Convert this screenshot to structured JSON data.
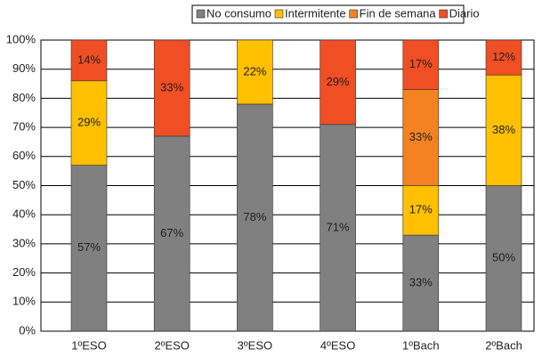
{
  "chart_data": {
    "type": "stacked_bar",
    "categories": [
      "1ºESO",
      "2ºESO",
      "3ºESO",
      "4ºESO",
      "1ºBach",
      "2ºBach"
    ],
    "series": [
      {
        "name": "No consumo",
        "color": "#808080",
        "values": [
          57,
          67,
          78,
          71,
          33,
          50
        ],
        "value_labels": [
          "57%",
          "67%",
          "78%",
          "71%",
          "33%",
          "50%"
        ]
      },
      {
        "name": "Intermitente",
        "color": "#ffc000",
        "values": [
          29,
          null,
          22,
          null,
          17,
          38
        ],
        "value_labels": [
          "29%",
          null,
          "22%",
          null,
          "17%",
          "38%"
        ]
      },
      {
        "name": "Fin de semana",
        "color": "#f58220",
        "values": [
          null,
          null,
          null,
          null,
          33,
          null
        ],
        "value_labels": [
          null,
          null,
          null,
          null,
          "33%",
          null
        ]
      },
      {
        "name": "Diario",
        "color": "#f04e23",
        "values": [
          14,
          33,
          null,
          29,
          17,
          12
        ],
        "value_labels": [
          "14%",
          "33%",
          null,
          "29%",
          "17%",
          "12%"
        ]
      }
    ],
    "ylim": [
      0,
      100
    ],
    "yticks": [
      {
        "value": 0,
        "label": "0%"
      },
      {
        "value": 10,
        "label": "10%"
      },
      {
        "value": 20,
        "label": "20%"
      },
      {
        "value": 30,
        "label": "30%"
      },
      {
        "value": 40,
        "label": "40%"
      },
      {
        "value": 50,
        "label": "50%"
      },
      {
        "value": 60,
        "label": "60%"
      },
      {
        "value": 70,
        "label": "70%"
      },
      {
        "value": 80,
        "label": "80%"
      },
      {
        "value": 90,
        "label": "90%"
      },
      {
        "value": 100,
        "label": "100%"
      }
    ],
    "grid": true,
    "legend": "top"
  }
}
